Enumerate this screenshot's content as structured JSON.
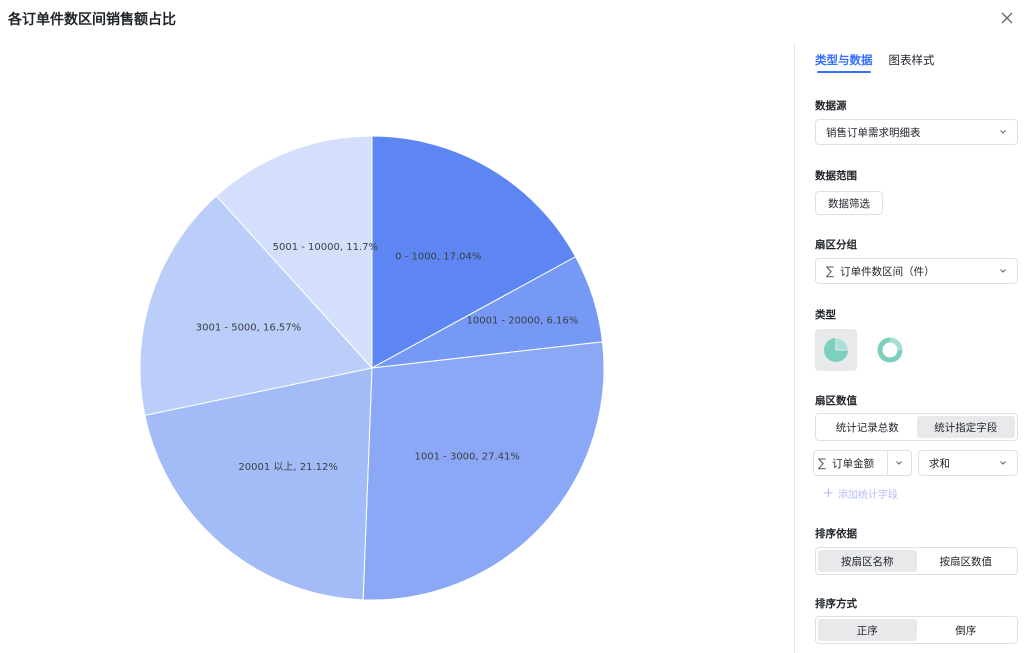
{
  "dialog": {
    "title": "各订单件数区间销售额占比"
  },
  "panel": {
    "tabs": [
      {
        "label": "类型与数据",
        "active": true
      },
      {
        "label": "图表样式",
        "active": false
      }
    ],
    "data_source": {
      "label": "数据源",
      "value": "销售订单需求明细表"
    },
    "data_range": {
      "label": "数据范围",
      "button": "数据筛选"
    },
    "sector_group": {
      "label": "扇区分组",
      "value": "订单件数区间（件）",
      "icon": "sigma-icon"
    },
    "chart_type": {
      "label": "类型",
      "options": [
        "pie",
        "ring"
      ],
      "selected": "pie"
    },
    "sector_value": {
      "label": "扇区数值",
      "modes": [
        "统计记录总数",
        "统计指定字段"
      ],
      "selected": "统计指定字段",
      "field": "订单金额",
      "aggregation": "求和",
      "add_field": "添加统计字段"
    },
    "sort_by": {
      "label": "排序依据",
      "options": [
        "按扇区名称",
        "按扇区数值"
      ],
      "selected": "按扇区名称"
    },
    "sort_order": {
      "label": "排序方式",
      "options": [
        "正序",
        "倒序"
      ],
      "selected": "正序"
    }
  },
  "colors": {
    "accent": "#3370ff",
    "pie": [
      "#5d86f2",
      "#7599f4",
      "#8aa8f6",
      "#a3bcf8",
      "#bbcdf9",
      "#d3dffb"
    ],
    "type_icon": "#7dcfc0"
  },
  "chart_data": {
    "type": "pie",
    "slices": [
      {
        "category": "0 - 1000",
        "percent": 17.04,
        "label": "0 - 1000, 17.04%"
      },
      {
        "category": "10001 - 20000",
        "percent": 6.16,
        "label": "10001 - 20000, 6.16%"
      },
      {
        "category": "1001 - 3000",
        "percent": 27.41,
        "label": "1001 - 3000, 27.41%"
      },
      {
        "category": "20001 以上",
        "percent": 21.12,
        "label": "20001 以上, 21.12%"
      },
      {
        "category": "3001 - 5000",
        "percent": 16.57,
        "label": "3001 - 5000, 16.57%"
      },
      {
        "category": "5001 - 10000",
        "percent": 11.7,
        "label": "5001 - 10000, 11.7%"
      }
    ]
  }
}
